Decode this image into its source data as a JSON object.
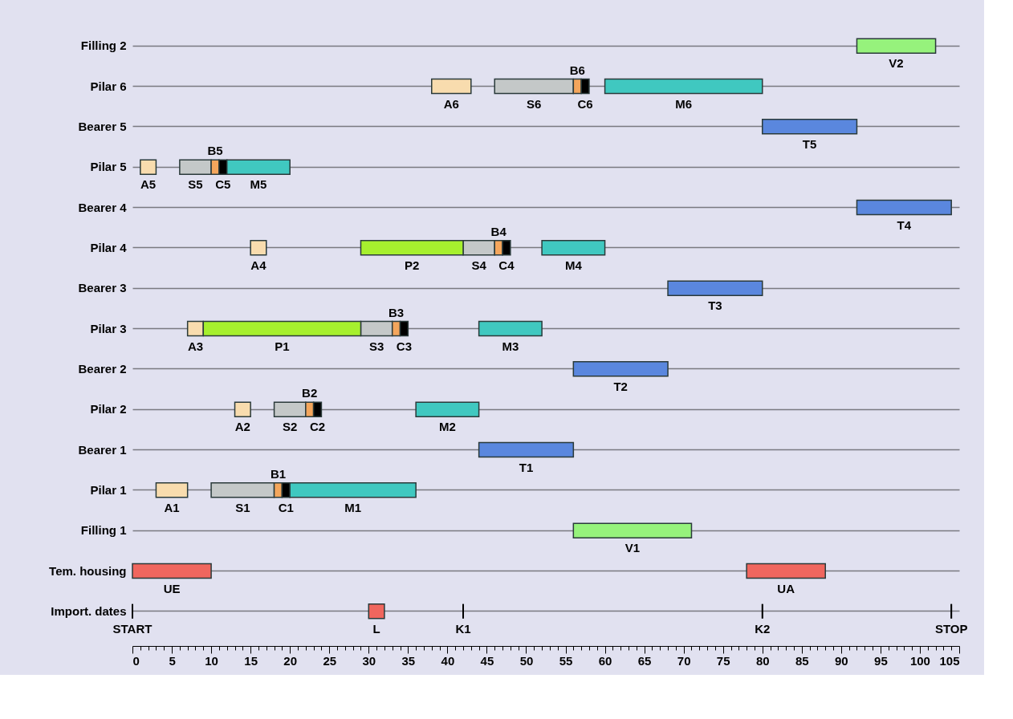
{
  "chart_data": {
    "type": "bar",
    "orientation": "horizontal",
    "categories": [
      "Filling 2",
      "Pilar 6",
      "Bearer 5",
      "Pilar 5",
      "Bearer 4",
      "Pilar 4",
      "Bearer 3",
      "Pilar 3",
      "Bearer 2",
      "Pilar 2",
      "Bearer 1",
      "Pilar 1",
      "Filling 1",
      "Tem. housing",
      "Import. dates"
    ],
    "series": [
      {
        "color": "#f8dcae",
        "base": [
          null,
          38,
          null,
          1,
          null,
          15,
          null,
          7,
          null,
          13,
          null,
          3,
          null,
          null,
          null
        ],
        "values": [
          null,
          5,
          null,
          2,
          null,
          2,
          null,
          2,
          null,
          2,
          null,
          4,
          null,
          null,
          null
        ],
        "value_labels": [
          null,
          "A6",
          null,
          "A5",
          null,
          "A4",
          null,
          "A3",
          null,
          "A2",
          null,
          "A1",
          null,
          null,
          null
        ]
      },
      {
        "color": "#c4c8c8",
        "base": [
          null,
          46,
          null,
          6,
          null,
          42,
          null,
          29,
          null,
          18,
          null,
          10,
          null,
          null,
          null
        ],
        "values": [
          null,
          10,
          null,
          4,
          null,
          4,
          null,
          4,
          null,
          4,
          null,
          8,
          null,
          null,
          null
        ],
        "value_labels": [
          null,
          "S6",
          null,
          "S5",
          null,
          "S4",
          null,
          "S3",
          null,
          "S2",
          null,
          "S1",
          null,
          null,
          null
        ]
      },
      {
        "color": "#f4a65c",
        "base": [
          null,
          56,
          null,
          10,
          null,
          46,
          null,
          33,
          null,
          22,
          null,
          18,
          null,
          null,
          null
        ],
        "values": [
          null,
          1,
          null,
          1,
          null,
          1,
          null,
          1,
          null,
          1,
          null,
          1,
          null,
          null,
          null
        ],
        "value_labels": [
          null,
          "B6",
          null,
          "B5",
          null,
          "B4",
          null,
          "B3",
          null,
          "B2",
          null,
          "B1",
          null,
          null,
          null
        ]
      },
      {
        "color": "#000000",
        "base": [
          null,
          57,
          null,
          11,
          null,
          47,
          null,
          34,
          null,
          23,
          null,
          19,
          null,
          null,
          null
        ],
        "values": [
          null,
          1,
          null,
          1,
          null,
          1,
          null,
          1,
          null,
          1,
          null,
          1,
          null,
          null,
          null
        ],
        "value_labels": [
          null,
          "C6",
          null,
          "C5",
          null,
          "C4",
          null,
          "C3",
          null,
          "C2",
          null,
          "C1",
          null,
          null,
          null
        ]
      },
      {
        "color": "#40c8c0",
        "base": [
          null,
          60,
          null,
          12,
          null,
          52,
          null,
          44,
          null,
          36,
          null,
          20,
          null,
          null,
          null
        ],
        "values": [
          null,
          20,
          null,
          8,
          null,
          8,
          null,
          8,
          null,
          8,
          null,
          16,
          null,
          null,
          null
        ],
        "value_labels": [
          null,
          "M6",
          null,
          "M5",
          null,
          "M4",
          null,
          "M3",
          null,
          "M2",
          null,
          "M1",
          null,
          null,
          null
        ]
      },
      {
        "color": "#a6f02e",
        "base": [
          null,
          null,
          null,
          null,
          null,
          29,
          null,
          9,
          null,
          null,
          null,
          null,
          null,
          null,
          null
        ],
        "values": [
          null,
          null,
          null,
          null,
          null,
          13,
          null,
          20,
          null,
          null,
          null,
          null,
          null,
          null,
          null
        ],
        "value_labels": [
          null,
          null,
          null,
          null,
          null,
          "P2",
          null,
          "P1",
          null,
          null,
          null,
          null,
          null,
          null,
          null
        ]
      },
      {
        "color": "#5a87de",
        "base": [
          null,
          null,
          80,
          null,
          92,
          null,
          68,
          null,
          56,
          null,
          44,
          null,
          null,
          null,
          null
        ],
        "values": [
          null,
          null,
          12,
          null,
          12,
          null,
          12,
          null,
          12,
          null,
          12,
          null,
          null,
          null,
          null
        ],
        "value_labels": [
          null,
          null,
          "T5",
          null,
          "T4",
          null,
          "T3",
          null,
          "T2",
          null,
          "T1",
          null,
          null,
          null,
          null
        ]
      },
      {
        "color": "#96f27c",
        "base": [
          92,
          null,
          null,
          null,
          null,
          null,
          null,
          null,
          null,
          null,
          null,
          null,
          56,
          null,
          null
        ],
        "values": [
          10,
          null,
          null,
          null,
          null,
          null,
          null,
          null,
          null,
          null,
          null,
          null,
          15,
          null,
          null
        ],
        "value_labels": [
          "V2",
          null,
          null,
          null,
          null,
          null,
          null,
          null,
          null,
          null,
          null,
          null,
          "V1",
          null,
          null
        ]
      },
      {
        "color": "#f0665e",
        "base": [
          null,
          null,
          null,
          null,
          null,
          null,
          null,
          null,
          null,
          null,
          null,
          null,
          null,
          0,
          30
        ],
        "values": [
          null,
          null,
          null,
          null,
          null,
          null,
          null,
          null,
          null,
          null,
          null,
          null,
          null,
          10,
          2
        ],
        "value_labels": [
          null,
          null,
          null,
          null,
          null,
          null,
          null,
          null,
          null,
          null,
          null,
          null,
          null,
          "UE",
          "L"
        ]
      },
      {
        "color": "#f0665e",
        "base": [
          null,
          null,
          null,
          null,
          null,
          null,
          null,
          null,
          null,
          null,
          null,
          null,
          null,
          78,
          null
        ],
        "values": [
          null,
          null,
          null,
          null,
          null,
          null,
          null,
          null,
          null,
          null,
          null,
          null,
          null,
          10,
          null
        ],
        "value_labels": [
          null,
          null,
          null,
          null,
          null,
          null,
          null,
          null,
          null,
          null,
          null,
          null,
          null,
          "UA",
          null
        ]
      },
      {
        "color": "#000000",
        "base": [
          null,
          null,
          null,
          null,
          null,
          null,
          null,
          null,
          null,
          null,
          null,
          null,
          null,
          null,
          0
        ],
        "values": [
          null,
          null,
          null,
          null,
          null,
          null,
          null,
          null,
          null,
          null,
          null,
          null,
          null,
          null,
          0
        ],
        "value_labels": [
          null,
          null,
          null,
          null,
          null,
          null,
          null,
          null,
          null,
          null,
          null,
          null,
          null,
          null,
          "START"
        ]
      },
      {
        "color": "#000000",
        "base": [
          null,
          null,
          null,
          null,
          null,
          null,
          null,
          null,
          null,
          null,
          null,
          null,
          null,
          null,
          42
        ],
        "values": [
          null,
          null,
          null,
          null,
          null,
          null,
          null,
          null,
          null,
          null,
          null,
          null,
          null,
          null,
          0
        ],
        "value_labels": [
          null,
          null,
          null,
          null,
          null,
          null,
          null,
          null,
          null,
          null,
          null,
          null,
          null,
          null,
          "K1"
        ]
      },
      {
        "color": "#000000",
        "base": [
          null,
          null,
          null,
          null,
          null,
          null,
          null,
          null,
          null,
          null,
          null,
          null,
          null,
          null,
          80
        ],
        "values": [
          null,
          null,
          null,
          null,
          null,
          null,
          null,
          null,
          null,
          null,
          null,
          null,
          null,
          null,
          0
        ],
        "value_labels": [
          null,
          null,
          null,
          null,
          null,
          null,
          null,
          null,
          null,
          null,
          null,
          null,
          null,
          null,
          "K2"
        ]
      },
      {
        "color": "#000000",
        "base": [
          null,
          null,
          null,
          null,
          null,
          null,
          null,
          null,
          null,
          null,
          null,
          null,
          null,
          null,
          104
        ],
        "values": [
          null,
          null,
          null,
          null,
          null,
          null,
          null,
          null,
          null,
          null,
          null,
          null,
          null,
          null,
          0
        ],
        "value_labels": [
          null,
          null,
          null,
          null,
          null,
          null,
          null,
          null,
          null,
          null,
          null,
          null,
          null,
          null,
          "STOP"
        ]
      }
    ],
    "xlim": [
      0,
      105
    ],
    "xticks": [
      0,
      {
        "value": 1,
        "label": null
      },
      {
        "value": 2,
        "label": null
      },
      {
        "value": 3,
        "label": null
      },
      {
        "value": 4,
        "label": null
      },
      5,
      {
        "value": 6,
        "label": null
      },
      {
        "value": 7,
        "label": null
      },
      {
        "value": 8,
        "label": null
      },
      {
        "value": 9,
        "label": null
      },
      10,
      {
        "value": 11,
        "label": null
      },
      {
        "value": 12,
        "label": null
      },
      {
        "value": 13,
        "label": null
      },
      {
        "value": 14,
        "label": null
      },
      15,
      {
        "value": 16,
        "label": null
      },
      {
        "value": 17,
        "label": null
      },
      {
        "value": 18,
        "label": null
      },
      {
        "value": 19,
        "label": null
      },
      20,
      {
        "value": 21,
        "label": null
      },
      {
        "value": 22,
        "label": null
      },
      {
        "value": 23,
        "label": null
      },
      {
        "value": 24,
        "label": null
      },
      25,
      {
        "value": 26,
        "label": null
      },
      {
        "value": 27,
        "label": null
      },
      {
        "value": 28,
        "label": null
      },
      {
        "value": 29,
        "label": null
      },
      30,
      {
        "value": 31,
        "label": null
      },
      {
        "value": 32,
        "label": null
      },
      {
        "value": 33,
        "label": null
      },
      {
        "value": 34,
        "label": null
      },
      35,
      {
        "value": 36,
        "label": null
      },
      {
        "value": 37,
        "label": null
      },
      {
        "value": 38,
        "label": null
      },
      {
        "value": 39,
        "label": null
      },
      40,
      {
        "value": 41,
        "label": null
      },
      {
        "value": 42,
        "label": null
      },
      {
        "value": 43,
        "label": null
      },
      {
        "value": 44,
        "label": null
      },
      45,
      {
        "value": 46,
        "label": null
      },
      {
        "value": 47,
        "label": null
      },
      {
        "value": 48,
        "label": null
      },
      {
        "value": 49,
        "label": null
      },
      50,
      {
        "value": 51,
        "label": null
      },
      {
        "value": 52,
        "label": null
      },
      {
        "value": 53,
        "label": null
      },
      {
        "value": 54,
        "label": null
      },
      55,
      {
        "value": 56,
        "label": null
      },
      {
        "value": 57,
        "label": null
      },
      {
        "value": 58,
        "label": null
      },
      {
        "value": 59,
        "label": null
      },
      60,
      {
        "value": 61,
        "label": null
      },
      {
        "value": 62,
        "label": null
      },
      {
        "value": 63,
        "label": null
      },
      {
        "value": 64,
        "label": null
      },
      65,
      {
        "value": 66,
        "label": null
      },
      {
        "value": 67,
        "label": null
      },
      {
        "value": 68,
        "label": null
      },
      {
        "value": 69,
        "label": null
      },
      70,
      {
        "value": 71,
        "label": null
      },
      {
        "value": 72,
        "label": null
      },
      {
        "value": 73,
        "label": null
      },
      {
        "value": 74,
        "label": null
      },
      75,
      {
        "value": 76,
        "label": null
      },
      {
        "value": 77,
        "label": null
      },
      {
        "value": 78,
        "label": null
      },
      {
        "value": 79,
        "label": null
      },
      80,
      {
        "value": 81,
        "label": null
      },
      {
        "value": 82,
        "label": null
      },
      {
        "value": 83,
        "label": null
      },
      {
        "value": 84,
        "label": null
      },
      85,
      {
        "value": 86,
        "label": null
      },
      {
        "value": 87,
        "label": null
      },
      {
        "value": 88,
        "label": null
      },
      {
        "value": 89,
        "label": null
      },
      90,
      {
        "value": 91,
        "label": null
      },
      {
        "value": 92,
        "label": null
      },
      {
        "value": 93,
        "label": null
      },
      {
        "value": 94,
        "label": null
      },
      95,
      {
        "value": 96,
        "label": null
      },
      {
        "value": 97,
        "label": null
      },
      {
        "value": 98,
        "label": null
      },
      {
        "value": 99,
        "label": null
      },
      100,
      {
        "value": 101,
        "label": null
      },
      {
        "value": 102,
        "label": null
      },
      {
        "value": 103,
        "label": null
      },
      {
        "value": 104,
        "label": null
      },
      105
    ],
    "grid": "y"
  }
}
